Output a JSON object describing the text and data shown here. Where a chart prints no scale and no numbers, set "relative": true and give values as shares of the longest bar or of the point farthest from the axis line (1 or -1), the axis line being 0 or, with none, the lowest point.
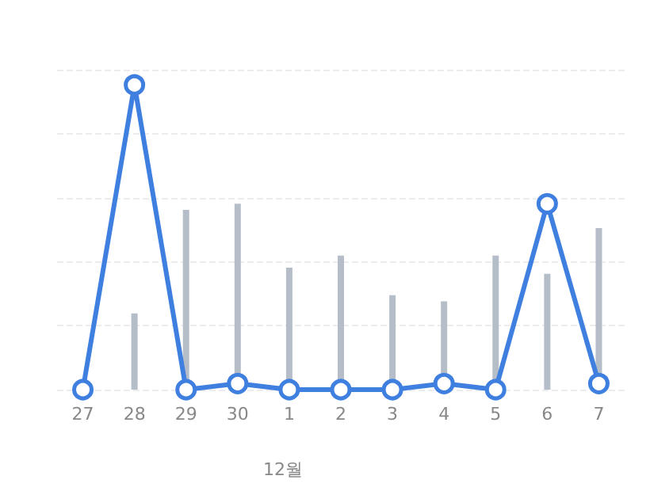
{
  "chart_data": {
    "type": "bar",
    "relative": true,
    "categories": [
      "27",
      "28",
      "29",
      "30",
      "1",
      "2",
      "3",
      "4",
      "5",
      "6",
      "7"
    ],
    "series": [
      {
        "color": "#b5bec8",
        "values": [
          null,
          0.25,
          0.59,
          0.61,
          0.4,
          0.44,
          0.31,
          0.29,
          0.44,
          0.38,
          0.53
        ]
      },
      {
        "type": "line",
        "color": "#3f7fe0",
        "values": [
          0,
          1,
          0,
          0.02,
          0,
          0,
          0,
          0.02,
          0,
          0.61,
          0.02
        ]
      }
    ],
    "annotations": [
      "12월"
    ],
    "grid": "y",
    "marker": "circle",
    "line_style": "solid"
  }
}
